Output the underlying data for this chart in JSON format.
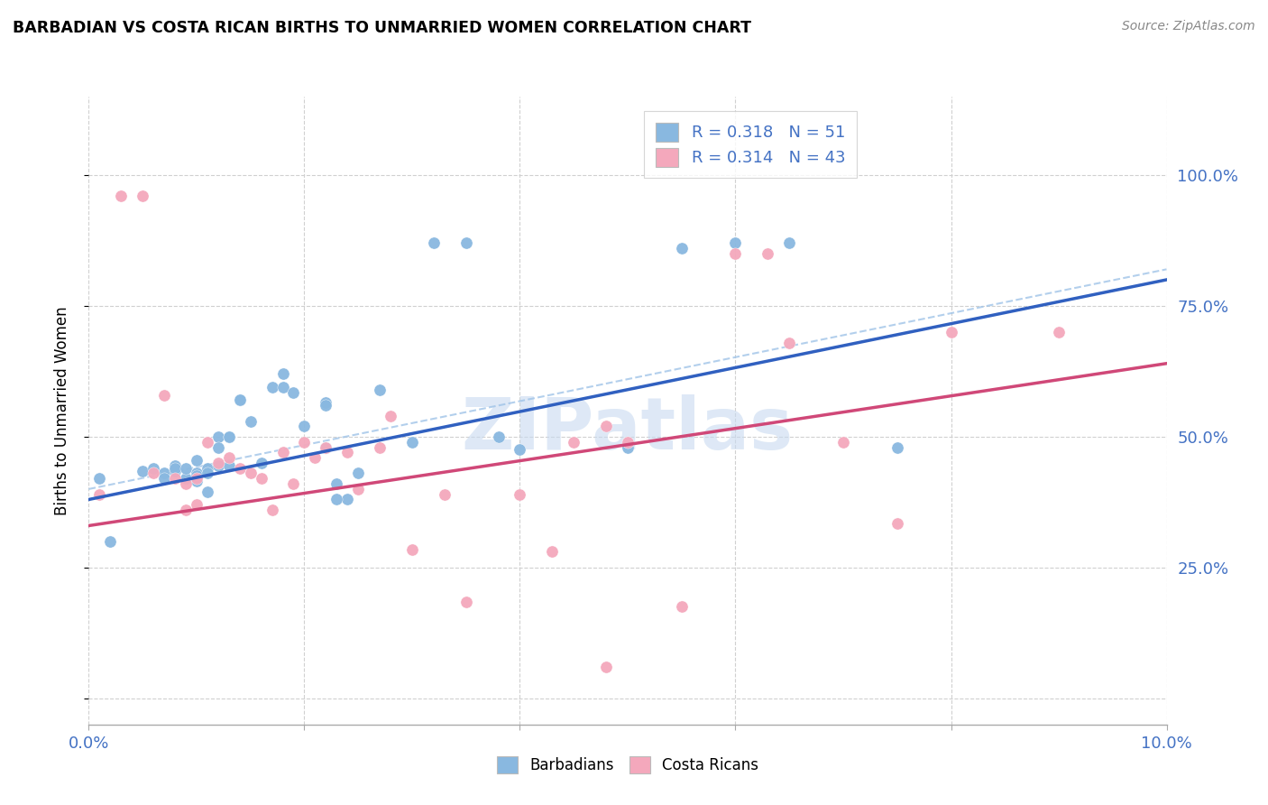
{
  "title": "BARBADIAN VS COSTA RICAN BIRTHS TO UNMARRIED WOMEN CORRELATION CHART",
  "source": "Source: ZipAtlas.com",
  "ylabel": "Births to Unmarried Women",
  "barbadian_color": "#89b8e0",
  "costarican_color": "#f4a8bc",
  "barbadian_line_color": "#3060c0",
  "costarican_line_color": "#d04878",
  "dashed_line_color": "#a0c4e8",
  "watermark_color": "#c8daf0",
  "xmin": 0.0,
  "xmax": 0.1,
  "ymin": -0.05,
  "ymax": 1.15,
  "yticks": [
    0.0,
    0.25,
    0.5,
    0.75,
    1.0
  ],
  "ytick_labels_right": [
    "",
    "25.0%",
    "50.0%",
    "75.0%",
    "100.0%"
  ],
  "xticks": [
    0.0,
    0.02,
    0.04,
    0.06,
    0.08,
    0.1
  ],
  "xtick_labels": [
    "0.0%",
    "",
    "",
    "",
    "",
    "10.0%"
  ],
  "barbadian_x": [
    0.001,
    0.002,
    0.005,
    0.006,
    0.007,
    0.007,
    0.008,
    0.008,
    0.008,
    0.009,
    0.009,
    0.01,
    0.01,
    0.01,
    0.01,
    0.011,
    0.011,
    0.011,
    0.012,
    0.012,
    0.012,
    0.013,
    0.013,
    0.013,
    0.014,
    0.014,
    0.015,
    0.016,
    0.017,
    0.018,
    0.018,
    0.019,
    0.02,
    0.022,
    0.022,
    0.023,
    0.024,
    0.025,
    0.027,
    0.03,
    0.032,
    0.035,
    0.038,
    0.04,
    0.05,
    0.055,
    0.06,
    0.065,
    0.075,
    0.022,
    0.023
  ],
  "barbadian_y": [
    0.42,
    0.3,
    0.435,
    0.44,
    0.43,
    0.42,
    0.435,
    0.445,
    0.44,
    0.42,
    0.44,
    0.43,
    0.425,
    0.455,
    0.415,
    0.44,
    0.43,
    0.395,
    0.445,
    0.5,
    0.48,
    0.5,
    0.5,
    0.445,
    0.57,
    0.57,
    0.53,
    0.45,
    0.595,
    0.62,
    0.595,
    0.585,
    0.52,
    0.565,
    0.56,
    0.41,
    0.38,
    0.43,
    0.59,
    0.49,
    0.87,
    0.87,
    0.5,
    0.475,
    0.48,
    0.86,
    0.87,
    0.87,
    0.48,
    0.48,
    0.38
  ],
  "costarican_x": [
    0.001,
    0.003,
    0.005,
    0.006,
    0.007,
    0.008,
    0.009,
    0.009,
    0.01,
    0.01,
    0.011,
    0.012,
    0.013,
    0.014,
    0.015,
    0.016,
    0.017,
    0.018,
    0.019,
    0.02,
    0.021,
    0.022,
    0.024,
    0.025,
    0.027,
    0.028,
    0.03,
    0.033,
    0.035,
    0.04,
    0.043,
    0.045,
    0.048,
    0.05,
    0.055,
    0.06,
    0.063,
    0.065,
    0.07,
    0.075,
    0.08,
    0.09,
    0.048
  ],
  "costarican_y": [
    0.39,
    0.96,
    0.96,
    0.43,
    0.58,
    0.42,
    0.41,
    0.36,
    0.42,
    0.37,
    0.49,
    0.45,
    0.46,
    0.44,
    0.43,
    0.42,
    0.36,
    0.47,
    0.41,
    0.49,
    0.46,
    0.48,
    0.47,
    0.4,
    0.48,
    0.54,
    0.285,
    0.39,
    0.185,
    0.39,
    0.28,
    0.49,
    0.52,
    0.49,
    0.175,
    0.85,
    0.85,
    0.68,
    0.49,
    0.335,
    0.7,
    0.7,
    0.06
  ],
  "blue_trend_intercept": 0.38,
  "blue_trend_slope": 4.2,
  "pink_trend_intercept": 0.33,
  "pink_trend_slope": 3.1
}
